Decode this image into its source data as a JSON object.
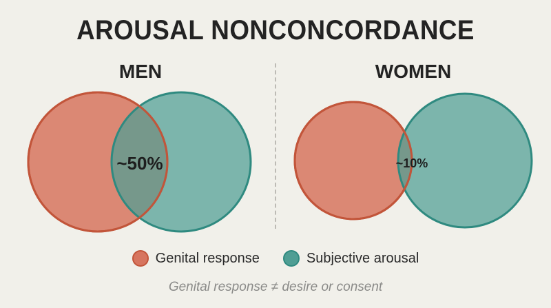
{
  "title": "AROUSAL NONCONCORDANCE",
  "panels": [
    {
      "heading": "MEN",
      "overlap_label": "~50%"
    },
    {
      "heading": "WOMEN",
      "overlap_label": "~10%"
    }
  ],
  "legend": {
    "genital": "Genital response",
    "subjective": "Subjective arousal"
  },
  "footnote": "Genital response ≠ desire or consent",
  "colors": {
    "genital_fill": "#d7755f",
    "genital_stroke": "#c2553a",
    "subjective_fill": "#4f9e94",
    "subjective_stroke": "#2f8a80",
    "background": "#f1f0ea"
  }
}
